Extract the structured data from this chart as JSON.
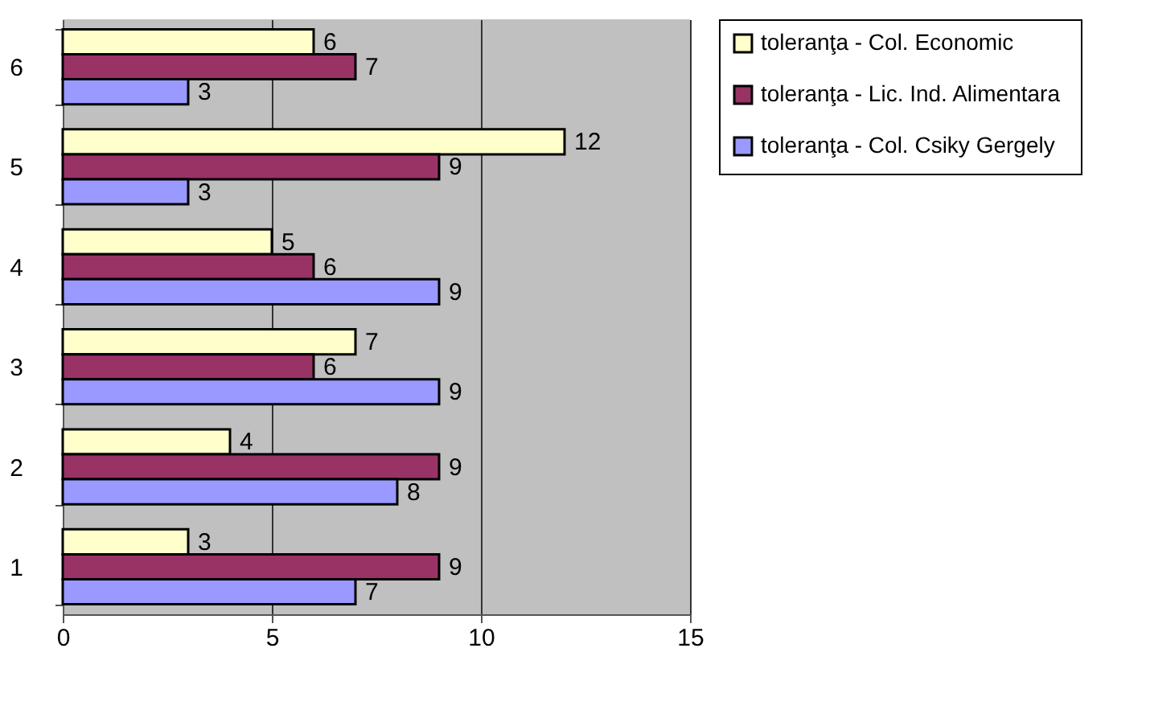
{
  "chart_data": {
    "type": "bar",
    "orientation": "horizontal",
    "categories": [
      "6",
      "5",
      "4",
      "3",
      "2",
      "1"
    ],
    "series": [
      {
        "name": "toleranţa - Col. Economic",
        "color": "#ffffcc",
        "values": [
          6,
          12,
          5,
          7,
          4,
          3
        ]
      },
      {
        "name": "toleranţa  - Lic. Ind. Alimentara",
        "color": "#993366",
        "values": [
          7,
          9,
          6,
          6,
          9,
          9
        ]
      },
      {
        "name": "toleranţa -  Col. Csiky Gergely",
        "color": "#9999ff",
        "values": [
          3,
          3,
          9,
          9,
          8,
          7
        ]
      }
    ],
    "xlim": [
      0,
      15
    ],
    "xticks": [
      0,
      5,
      10,
      15
    ],
    "grid": "x",
    "legend": "right",
    "data_labels": true
  }
}
